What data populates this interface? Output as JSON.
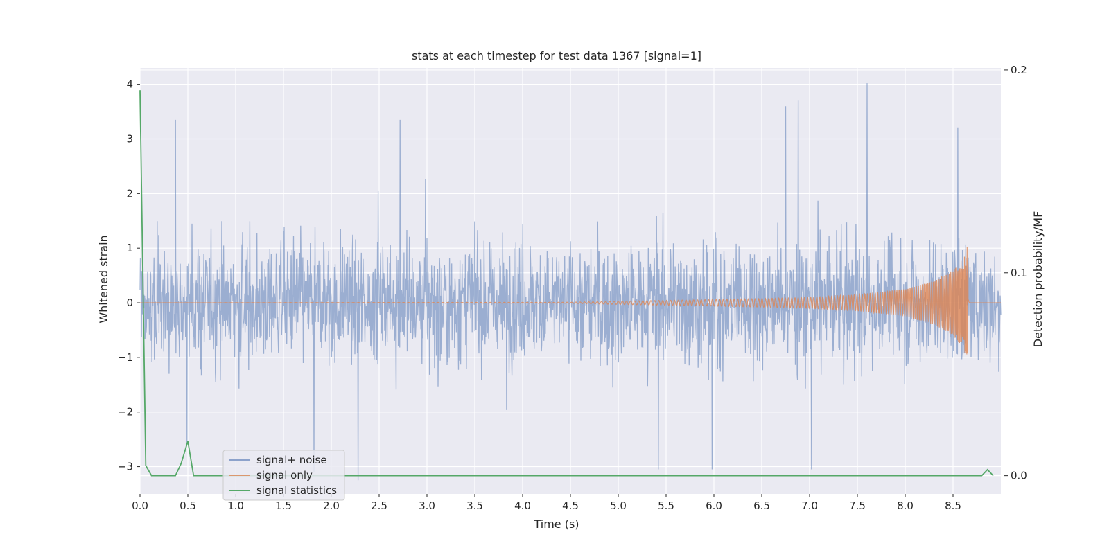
{
  "chart_data": {
    "type": "line",
    "title": "stats at each timestep for test data 1367 [signal=1]",
    "xlabel": "Time (s)",
    "ylabel": "Whitened strain",
    "y2label": "Detection probability/MF",
    "xlim": [
      0,
      9.0
    ],
    "ylim": [
      -3.5,
      4.3
    ],
    "y2lim": [
      -0.009,
      0.201
    ],
    "x_ticks": [
      0.0,
      0.5,
      1.0,
      1.5,
      2.0,
      2.5,
      3.0,
      3.5,
      4.0,
      4.5,
      5.0,
      5.5,
      6.0,
      6.5,
      7.0,
      7.5,
      8.0,
      8.5
    ],
    "x_tick_labels": [
      "0.0",
      "0.5",
      "1.0",
      "1.5",
      "2.0",
      "2.5",
      "3.0",
      "3.5",
      "4.0",
      "4.5",
      "5.0",
      "5.5",
      "6.0",
      "6.5",
      "7.0",
      "7.5",
      "8.0",
      "8.5"
    ],
    "y_ticks": [
      -3,
      -2,
      -1,
      0,
      1,
      2,
      3,
      4
    ],
    "y_tick_labels": [
      "−3",
      "−2",
      "−1",
      "0",
      "1",
      "2",
      "3",
      "4"
    ],
    "y2_ticks": [
      0.0,
      0.1,
      0.2
    ],
    "y2_tick_labels": [
      "0.0",
      "0.1",
      "0.2"
    ],
    "grid": true,
    "legend_position": "lower-left",
    "colors": {
      "background": "#eaeaf2",
      "grid": "#ffffff",
      "noise": "#4c72b0",
      "signal": "#dd8452",
      "stats": "#55a868"
    },
    "series": [
      {
        "name": "signal+ noise",
        "axis": "left",
        "description": "dense whitened noise, roughly within -2.5 to 2.5, peak ~4.0 near t=7.6",
        "peaks": [
          [
            0.37,
            3.35
          ],
          [
            2.72,
            3.35
          ],
          [
            6.88,
            3.7
          ],
          [
            6.75,
            3.6
          ],
          [
            7.6,
            4.02
          ],
          [
            8.55,
            3.2
          ],
          [
            0.49,
            -2.6
          ],
          [
            2.28,
            -3.25
          ],
          [
            5.42,
            -3.05
          ],
          [
            5.98,
            -3.05
          ],
          [
            7.02,
            -3.05
          ],
          [
            1.82,
            -3.1
          ]
        ]
      },
      {
        "name": "signal only",
        "axis": "left",
        "description": "chirp, amplitude growing toward merger at t~8.65",
        "envelope": [
          [
            0.0,
            0.0
          ],
          [
            4.5,
            0.01
          ],
          [
            5.0,
            0.03
          ],
          [
            6.0,
            0.06
          ],
          [
            7.0,
            0.1
          ],
          [
            7.5,
            0.15
          ],
          [
            8.0,
            0.25
          ],
          [
            8.3,
            0.4
          ],
          [
            8.5,
            0.6
          ],
          [
            8.6,
            0.8
          ],
          [
            8.65,
            1.05
          ],
          [
            8.67,
            0.0
          ],
          [
            9.0,
            0.0
          ]
        ]
      },
      {
        "name": "signal statistics",
        "axis": "right",
        "points": [
          [
            0.0,
            0.19
          ],
          [
            0.06,
            0.005
          ],
          [
            0.12,
            0.0
          ],
          [
            0.37,
            0.0
          ],
          [
            0.43,
            0.006
          ],
          [
            0.5,
            0.017
          ],
          [
            0.56,
            0.0
          ],
          [
            8.8,
            0.0
          ],
          [
            8.86,
            0.003
          ],
          [
            8.92,
            0.0
          ]
        ]
      }
    ]
  }
}
